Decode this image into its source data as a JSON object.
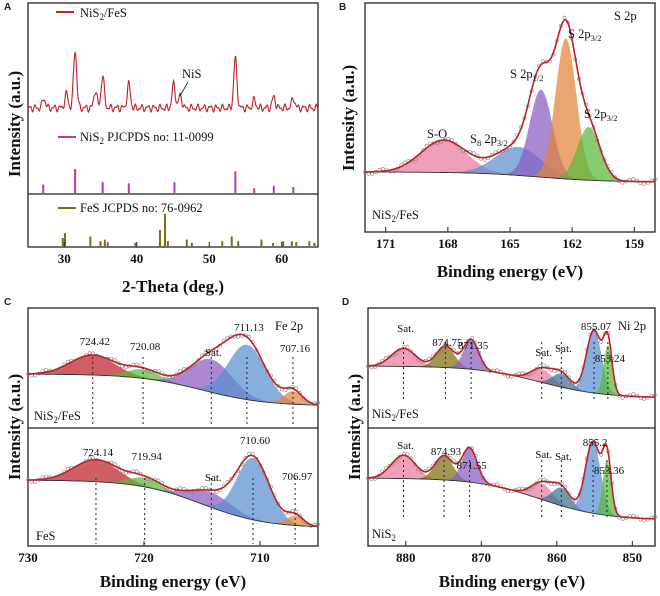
{
  "colors": {
    "red": "#c0202a",
    "magenta": "#b0409a",
    "olive": "#7a6f10",
    "pink": "#e77aa0",
    "blue_peak": "#5a8fd0",
    "purple": "#8a5cc0",
    "orange": "#e0833a",
    "green": "#5ab83a",
    "teal": "#3a7090",
    "gray": "#9a9a9a"
  },
  "chart_data": [
    {
      "panel": "A",
      "type": "line",
      "title": "",
      "xlabel": "2-Theta (deg.)",
      "ylabel": "Intensity (a.u.)",
      "xlim": [
        25,
        65
      ],
      "xticks": [
        30,
        40,
        50,
        60
      ],
      "legend": "NiS2/FeS",
      "legend_display": [
        "NiS",
        "2",
        "/FeS"
      ],
      "pattern_peaks": [
        {
          "x": 27.2,
          "h": 0.12
        },
        {
          "x": 30.3,
          "h": 0.18
        },
        {
          "x": 31.5,
          "h": 0.72
        },
        {
          "x": 34.3,
          "h": 0.22
        },
        {
          "x": 35.3,
          "h": 0.4
        },
        {
          "x": 38.9,
          "h": 0.3
        },
        {
          "x": 45.1,
          "h": 0.3
        },
        {
          "x": 46.0,
          "h": 0.16
        },
        {
          "x": 53.6,
          "h": 0.62
        },
        {
          "x": 56.2,
          "h": 0.1
        },
        {
          "x": 58.9,
          "h": 0.14
        },
        {
          "x": 61.6,
          "h": 0.12
        }
      ],
      "annotation": "NiS",
      "reference_1": {
        "label_display": [
          "NiS",
          "2",
          " PJCPDS no: 11-0099"
        ],
        "sticks": [
          {
            "x": 27.1,
            "h": 0.35
          },
          {
            "x": 31.5,
            "h": 1.0
          },
          {
            "x": 35.3,
            "h": 0.45
          },
          {
            "x": 38.9,
            "h": 0.4
          },
          {
            "x": 45.2,
            "h": 0.45
          },
          {
            "x": 53.6,
            "h": 0.9
          },
          {
            "x": 56.2,
            "h": 0.2
          },
          {
            "x": 58.9,
            "h": 0.3
          },
          {
            "x": 61.6,
            "h": 0.25
          }
        ]
      },
      "reference_2": {
        "label": "FeS JCPDS no: 76-0962",
        "sticks": [
          {
            "x": 29.8,
            "h": 0.25
          },
          {
            "x": 30.1,
            "h": 0.4
          },
          {
            "x": 33.6,
            "h": 0.3
          },
          {
            "x": 35.0,
            "h": 0.15
          },
          {
            "x": 35.6,
            "h": 0.2
          },
          {
            "x": 36.0,
            "h": 0.12
          },
          {
            "x": 39.8,
            "h": 0.1
          },
          {
            "x": 43.2,
            "h": 0.5
          },
          {
            "x": 43.9,
            "h": 1.0
          },
          {
            "x": 44.3,
            "h": 0.15
          },
          {
            "x": 46.9,
            "h": 0.2
          },
          {
            "x": 47.6,
            "h": 0.1
          },
          {
            "x": 51.8,
            "h": 0.15
          },
          {
            "x": 53.1,
            "h": 0.3
          },
          {
            "x": 54.0,
            "h": 0.15
          },
          {
            "x": 57.2,
            "h": 0.2
          },
          {
            "x": 58.8,
            "h": 0.1
          },
          {
            "x": 60.2,
            "h": 0.15
          },
          {
            "x": 61.4,
            "h": 0.15
          },
          {
            "x": 62.0,
            "h": 0.12
          },
          {
            "x": 63.8,
            "h": 0.15
          },
          {
            "x": 64.5,
            "h": 0.1
          }
        ]
      }
    },
    {
      "panel": "B",
      "type": "area",
      "title": "S 2p",
      "xlabel": "Binding energy (eV)",
      "ylabel": "Intensity (a.u.)",
      "xlim": [
        172,
        158
      ],
      "xticks": [
        171,
        168,
        165,
        162,
        159
      ],
      "sample_label_display": [
        "NiS",
        "2",
        "/FeS"
      ],
      "components": [
        {
          "label_display": [
            "S-O",
            "",
            ""
          ],
          "center": 168.2,
          "amp": 0.17,
          "sigma": 1.1,
          "color": "pink"
        },
        {
          "label_display": [
            "S",
            "8",
            " 2p",
            "3/2",
            ""
          ],
          "center": 164.6,
          "amp": 0.15,
          "sigma": 1.1,
          "color": "blue_peak"
        },
        {
          "label_display": [
            "S 2p",
            "1/2",
            ""
          ],
          "center": 163.5,
          "amp": 0.46,
          "sigma": 0.55,
          "color": "purple"
        },
        {
          "label_display": [
            "S 2p",
            "3/2",
            ""
          ],
          "center": 162.3,
          "amp": 0.74,
          "sigma": 0.5,
          "color": "orange"
        },
        {
          "label_display": [
            "S 2p",
            "3/2",
            ""
          ],
          "center": 161.2,
          "amp": 0.28,
          "sigma": 0.55,
          "color": "green"
        }
      ]
    },
    {
      "panel": "C",
      "type": "area",
      "title": "Fe 2p",
      "xlabel": "Binding energy (eV)",
      "ylabel": "Intensity (a.u.)",
      "xlim": [
        730,
        705
      ],
      "xticks": [
        730,
        720,
        710
      ],
      "spectra": [
        {
          "sample_display": [
            "NiS",
            "2",
            "/FeS"
          ],
          "peaks": [
            {
              "label": "724.42",
              "center": 724.42,
              "amp": 0.2,
              "sigma": 1.9,
              "color": "red"
            },
            {
              "label": "720.08",
              "center": 720.08,
              "amp": 0.09,
              "sigma": 1.4,
              "color": "green"
            },
            {
              "label": "Sat.",
              "center": 714.2,
              "amp": 0.33,
              "sigma": 1.8,
              "color": "purple"
            },
            {
              "label": "711.13",
              "center": 711.13,
              "amp": 0.55,
              "sigma": 1.6,
              "color": "blue_peak"
            },
            {
              "label": "707.16",
              "center": 707.16,
              "amp": 0.13,
              "sigma": 0.8,
              "color": "orange"
            }
          ]
        },
        {
          "sample_display": [
            "FeS",
            "",
            ""
          ],
          "peaks": [
            {
              "label": "724.14",
              "center": 724.14,
              "amp": 0.22,
              "sigma": 1.9,
              "color": "red"
            },
            {
              "label": "719.94",
              "center": 719.94,
              "amp": 0.09,
              "sigma": 1.4,
              "color": "green"
            },
            {
              "label": "Sat.",
              "center": 714.2,
              "amp": 0.15,
              "sigma": 1.8,
              "color": "purple"
            },
            {
              "label": "710.60",
              "center": 710.6,
              "amp": 0.62,
              "sigma": 1.4,
              "color": "blue_peak"
            },
            {
              "label": "706.97",
              "center": 706.97,
              "amp": 0.1,
              "sigma": 0.7,
              "color": "orange"
            }
          ]
        }
      ]
    },
    {
      "panel": "D",
      "type": "area",
      "title": "Ni 2p",
      "xlabel": "Binding energy (eV)",
      "ylabel": "Intensity (a.u.)",
      "xlim": [
        885,
        847
      ],
      "xticks": [
        880,
        870,
        860,
        850
      ],
      "spectra": [
        {
          "sample_display": [
            "NiS",
            "2",
            "/FeS"
          ],
          "peaks": [
            {
              "label": "Sat.",
              "center": 880.3,
              "amp": 0.2,
              "sigma": 1.6,
              "color": "pink"
            },
            {
              "label": "874.75",
              "center": 874.75,
              "amp": 0.24,
              "sigma": 1.2,
              "color": "olive"
            },
            {
              "label": "871.35",
              "center": 871.35,
              "amp": 0.33,
              "sigma": 1.0,
              "color": "purple"
            },
            {
              "label": "Sat.",
              "center": 862.0,
              "amp": 0.15,
              "sigma": 1.4,
              "color": "pink"
            },
            {
              "label": "Sat.",
              "center": 859.4,
              "amp": 0.15,
              "sigma": 1.2,
              "color": "teal"
            },
            {
              "label": "855.07",
              "center": 855.07,
              "amp": 0.7,
              "sigma": 1.0,
              "color": "blue_peak"
            },
            {
              "label": "853.24",
              "center": 853.24,
              "amp": 0.55,
              "sigma": 0.55,
              "color": "green"
            }
          ]
        },
        {
          "sample_display": [
            "NiS",
            "2",
            ""
          ],
          "peaks": [
            {
              "label": "Sat.",
              "center": 880.3,
              "amp": 0.26,
              "sigma": 1.6,
              "color": "pink"
            },
            {
              "label": "874.93",
              "center": 874.93,
              "amp": 0.27,
              "sigma": 1.2,
              "color": "olive"
            },
            {
              "label": "871.55",
              "center": 871.55,
              "amp": 0.38,
              "sigma": 1.0,
              "color": "purple"
            },
            {
              "label": "Sat.",
              "center": 862.0,
              "amp": 0.18,
              "sigma": 1.4,
              "color": "pink"
            },
            {
              "label": "Sat.",
              "center": 859.4,
              "amp": 0.2,
              "sigma": 1.2,
              "color": "teal"
            },
            {
              "label": "855.2",
              "center": 855.2,
              "amp": 0.8,
              "sigma": 1.0,
              "color": "blue_peak"
            },
            {
              "label": "853.36",
              "center": 853.36,
              "amp": 0.62,
              "sigma": 0.55,
              "color": "green"
            }
          ]
        }
      ]
    }
  ],
  "panels": {
    "a": {
      "letter": "A"
    },
    "b": {
      "letter": "B"
    },
    "c": {
      "letter": "C"
    },
    "d": {
      "letter": "D"
    }
  }
}
